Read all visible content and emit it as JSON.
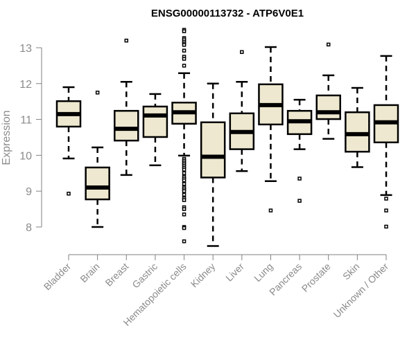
{
  "chart_data": {
    "type": "boxplot",
    "title": "ENSG00000113732 - ATP6V0E1",
    "xlabel": "",
    "ylabel": "Expression",
    "ylim": [
      8,
      13
    ],
    "yticks": [
      "8",
      "9",
      "10",
      "11",
      "12",
      "13"
    ],
    "grid": false,
    "box_fill": "#ede8cf",
    "line_color": "#000000",
    "axis_color": "#808080",
    "categories": [
      "Bladder",
      "Brain",
      "Breast",
      "Gastric",
      "Hematopoietic cells",
      "Kidney",
      "Liver",
      "Lung",
      "Pancreas",
      "Prostate",
      "Skin",
      "Unknown / Other"
    ],
    "series": [
      {
        "name": "Bladder",
        "whisker_low": 9.91,
        "q1": 10.8,
        "median": 11.15,
        "q3": 11.51,
        "whisker_high": 11.9,
        "outliers": [
          8.93
        ]
      },
      {
        "name": "Brain",
        "whisker_low": 8.0,
        "q1": 8.77,
        "median": 9.1,
        "q3": 9.66,
        "whisker_high": 10.22,
        "outliers": [
          11.75
        ]
      },
      {
        "name": "Breast",
        "whisker_low": 9.45,
        "q1": 10.41,
        "median": 10.74,
        "q3": 11.24,
        "whisker_high": 12.05,
        "outliers": [
          13.2
        ]
      },
      {
        "name": "Gastric",
        "whisker_low": 9.72,
        "q1": 10.51,
        "median": 11.11,
        "q3": 11.36,
        "whisker_high": 11.71,
        "outliers": []
      },
      {
        "name": "Hematopoietic cells",
        "whisker_low": 9.99,
        "q1": 10.88,
        "median": 11.2,
        "q3": 11.47,
        "whisker_high": 12.29,
        "outliers": [
          13.5,
          13.46,
          13.27,
          13.23,
          13.17,
          13.12,
          13.08,
          12.92,
          12.75,
          12.69,
          12.5,
          9.9,
          9.85,
          9.8,
          9.75,
          9.7,
          9.65,
          9.6,
          9.5,
          9.4,
          9.35,
          9.3,
          9.2,
          9.1,
          9.05,
          9.0,
          8.9,
          8.8,
          8.75,
          8.55,
          8.5,
          8.35,
          8.0,
          7.97,
          7.6
        ]
      },
      {
        "name": "Kidney",
        "whisker_low": 7.47,
        "q1": 9.38,
        "median": 9.96,
        "q3": 10.92,
        "whisker_high": 12.0,
        "outliers": []
      },
      {
        "name": "Liver",
        "whisker_low": 9.56,
        "q1": 10.17,
        "median": 10.65,
        "q3": 11.17,
        "whisker_high": 12.05,
        "outliers": [
          12.88
        ]
      },
      {
        "name": "Lung",
        "whisker_low": 9.28,
        "q1": 10.86,
        "median": 11.4,
        "q3": 11.98,
        "whisker_high": 13.02,
        "outliers": [
          8.46
        ]
      },
      {
        "name": "Pancreas",
        "whisker_low": 10.17,
        "q1": 10.59,
        "median": 10.95,
        "q3": 11.24,
        "whisker_high": 11.55,
        "outliers": [
          9.35,
          8.73
        ]
      },
      {
        "name": "Prostate",
        "whisker_low": 10.46,
        "q1": 11.01,
        "median": 11.2,
        "q3": 11.67,
        "whisker_high": 12.23,
        "outliers": [
          13.09
        ]
      },
      {
        "name": "Skin",
        "whisker_low": 9.67,
        "q1": 10.1,
        "median": 10.59,
        "q3": 11.2,
        "whisker_high": 11.88,
        "outliers": []
      },
      {
        "name": "Unknown / Other",
        "whisker_low": 8.89,
        "q1": 10.36,
        "median": 10.92,
        "q3": 11.4,
        "whisker_high": 12.77,
        "outliers": [
          8.79,
          8.46,
          8.01
        ]
      }
    ]
  }
}
